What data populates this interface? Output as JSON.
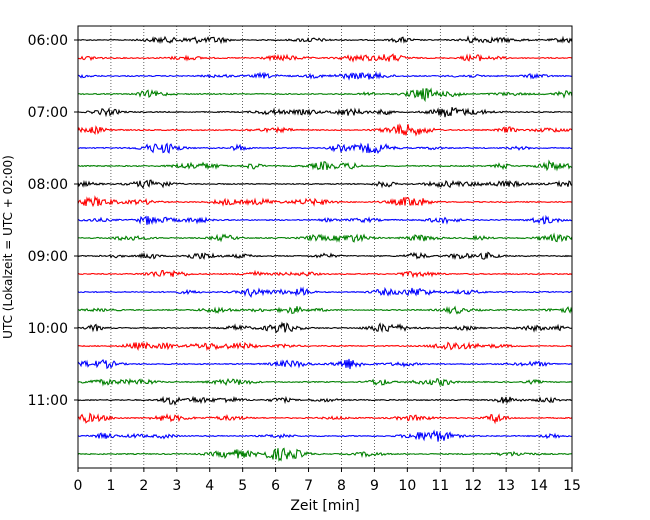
{
  "chart_data": {
    "type": "line",
    "title": "",
    "xlabel": "Zeit  [min]",
    "ylabel": "UTC (Lokalzeit = UTC + 02:00)",
    "xlim": [
      0,
      15
    ],
    "x_ticks": [
      "0",
      "1",
      "2",
      "3",
      "4",
      "5",
      "6",
      "7",
      "8",
      "9",
      "10",
      "11",
      "12",
      "13",
      "14",
      "15"
    ],
    "y_tick_labels": [
      "06:00",
      "07:00",
      "08:00",
      "09:00",
      "10:00",
      "11:00"
    ],
    "grid": "vertical dotted lines at each minute",
    "row_interval_minutes": 15,
    "series": [
      {
        "start": "06:00",
        "color": "#000000"
      },
      {
        "start": "06:15",
        "color": "#ff0000"
      },
      {
        "start": "06:30",
        "color": "#0000ff"
      },
      {
        "start": "06:45",
        "color": "#008000"
      },
      {
        "start": "07:00",
        "color": "#000000"
      },
      {
        "start": "07:15",
        "color": "#ff0000"
      },
      {
        "start": "07:30",
        "color": "#0000ff"
      },
      {
        "start": "07:45",
        "color": "#008000"
      },
      {
        "start": "08:00",
        "color": "#000000"
      },
      {
        "start": "08:15",
        "color": "#ff0000"
      },
      {
        "start": "08:30",
        "color": "#0000ff"
      },
      {
        "start": "08:45",
        "color": "#008000"
      },
      {
        "start": "09:00",
        "color": "#000000"
      },
      {
        "start": "09:15",
        "color": "#ff0000"
      },
      {
        "start": "09:30",
        "color": "#0000ff"
      },
      {
        "start": "09:45",
        "color": "#008000"
      },
      {
        "start": "10:00",
        "color": "#000000"
      },
      {
        "start": "10:15",
        "color": "#ff0000"
      },
      {
        "start": "10:30",
        "color": "#0000ff"
      },
      {
        "start": "10:45",
        "color": "#008000"
      },
      {
        "start": "11:00",
        "color": "#000000"
      },
      {
        "start": "11:15",
        "color": "#ff0000"
      },
      {
        "start": "11:30",
        "color": "#0000ff"
      },
      {
        "start": "11:45",
        "color": "#008000"
      }
    ]
  }
}
